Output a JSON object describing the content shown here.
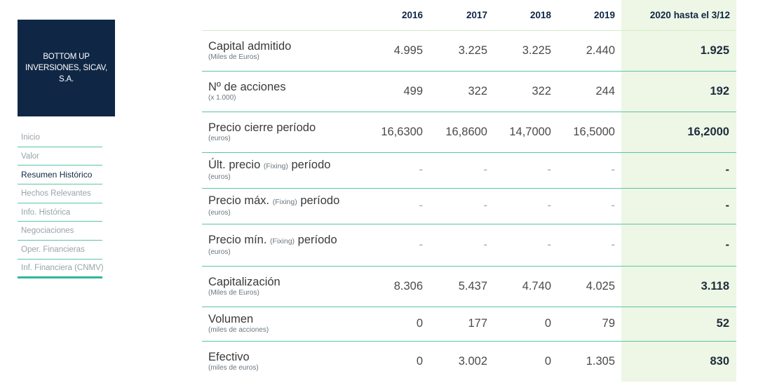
{
  "sidebar": {
    "company_name": "BOTTOM UP INVERSIONES, SICAV, S.A.",
    "nav_items": [
      {
        "label": "Inicio"
      },
      {
        "label": "Valor"
      },
      {
        "label": "Resumen Histórico",
        "active": true
      },
      {
        "label": "Hechos Relevantes"
      },
      {
        "label": "Info. Histórica"
      },
      {
        "label": "Negociaciones"
      },
      {
        "label": "Oper. Financieras"
      },
      {
        "label": "Inf. Financiera (CNMV)"
      }
    ]
  },
  "table": {
    "columns": [
      "2016",
      "2017",
      "2018",
      "2019",
      "2020 hasta el 3/12"
    ],
    "rows": [
      {
        "title": "Capital admitido",
        "subtitle": "(Miles de Euros)",
        "values": [
          "4.995",
          "3.225",
          "3.225",
          "2.440",
          "1.925"
        ]
      },
      {
        "title": "Nº de acciones",
        "subtitle": "(x 1.000)",
        "values": [
          "499",
          "322",
          "322",
          "244",
          "192"
        ]
      },
      {
        "title": "Precio cierre período",
        "subtitle": "(euros)",
        "values": [
          "16,6300",
          "16,8600",
          "14,7000",
          "16,5000",
          "16,2000"
        ]
      },
      {
        "title_pre": "Últ. precio",
        "title_fix": "(Fixing)",
        "title_post": "período",
        "subtitle": "(euros)",
        "values": [
          "-",
          "-",
          "-",
          "-",
          "-"
        ]
      },
      {
        "title_pre": "Precio máx.",
        "title_fix": "(Fixing)",
        "title_post": "período",
        "subtitle": "(euros)",
        "values": [
          "-",
          "-",
          "-",
          "-",
          "-"
        ]
      },
      {
        "title_pre": "Precio mín.",
        "title_fix": "(Fixing)",
        "title_post": "período",
        "subtitle": "(euros)",
        "values": [
          "-",
          "-",
          "-",
          "-",
          "-"
        ]
      },
      {
        "title": "Capitalización",
        "subtitle": "(Miles de Euros)",
        "values": [
          "8.306",
          "5.437",
          "4.740",
          "4.025",
          "3.118"
        ]
      },
      {
        "title": "Volumen",
        "subtitle": "(miles de acciones)",
        "values": [
          "0",
          "177",
          "0",
          "79",
          "52"
        ]
      },
      {
        "title": "Efectivo",
        "subtitle": "(miles de euros)",
        "values": [
          "0",
          "3.002",
          "0",
          "1.305",
          "830"
        ]
      }
    ]
  },
  "colors": {
    "brand_navy": "#0f2745",
    "accent_green": "#5bc4a7",
    "highlight_column": "#eef6e6"
  }
}
